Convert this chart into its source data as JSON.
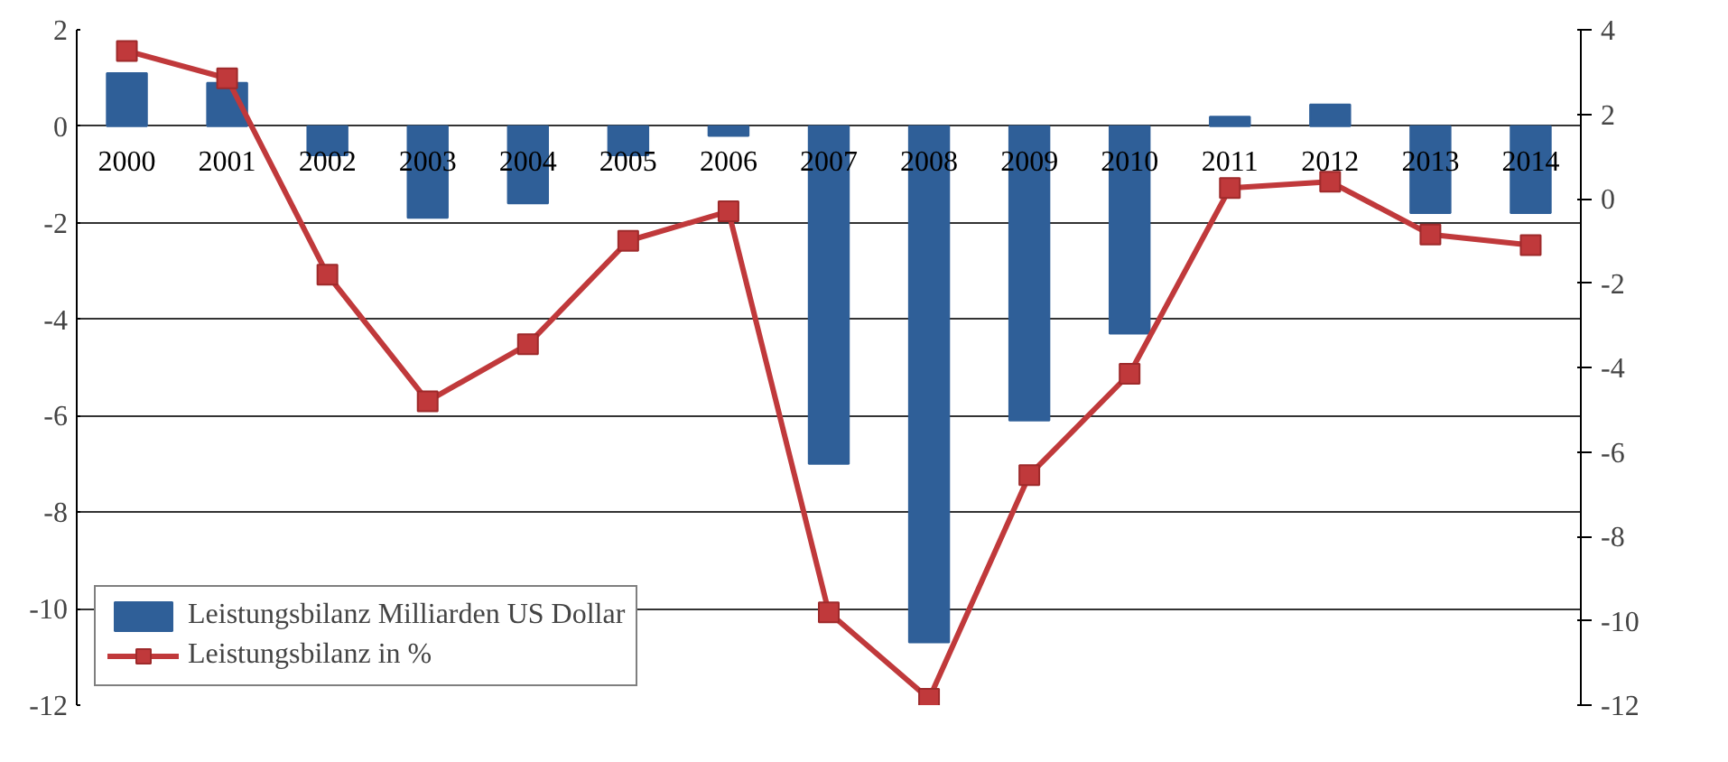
{
  "chart_data": {
    "type": "bar",
    "categories": [
      "2000",
      "2001",
      "2002",
      "2003",
      "2004",
      "2005",
      "2006",
      "2007",
      "2008",
      "2009",
      "2010",
      "2011",
      "2012",
      "2013",
      "2014"
    ],
    "series": [
      {
        "name": "Leistungsbilanz Milliarden US Dollar",
        "color": "#2f5f98",
        "values": [
          1.1,
          0.9,
          -0.6,
          -1.9,
          -1.6,
          -0.6,
          -0.2,
          -7.0,
          -10.7,
          -6.1,
          -4.3,
          0.2,
          0.45,
          -1.8,
          -1.8
        ]
      },
      {
        "name": "Leistungsbilanz in %",
        "type": "line",
        "axis": "y2",
        "color": "#c0393b",
        "marker": "square",
        "values": [
          3.5,
          2.85,
          -1.8,
          -4.8,
          -3.45,
          -1.0,
          -0.3,
          -9.8,
          -11.85,
          -6.55,
          -4.15,
          0.25,
          0.4,
          -0.85,
          -1.1
        ]
      }
    ],
    "ylim": [
      -12,
      2
    ],
    "yticks": [
      -12,
      -10,
      -8,
      -6,
      -4,
      -2,
      0,
      2
    ],
    "y2lim": [
      -12,
      4
    ],
    "y2ticks": [
      -12,
      -10,
      -8,
      -6,
      -4,
      -2,
      0,
      2,
      4
    ],
    "grid": "y",
    "legend": "bottom left"
  }
}
